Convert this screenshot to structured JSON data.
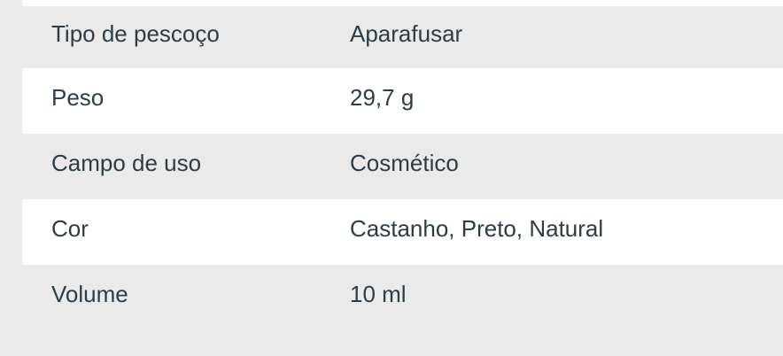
{
  "colors": {
    "background": "#eaeaea",
    "row_alt": "#ffffff",
    "text": "#2e3d45"
  },
  "spec_table": {
    "rows": [
      {
        "label": "Tipo de pescoço",
        "value": "Aparafusar"
      },
      {
        "label": "Peso",
        "value": "29,7 g"
      },
      {
        "label": "Campo de uso",
        "value": "Cosmético"
      },
      {
        "label": "Cor",
        "value": "Castanho, Preto, Natural"
      },
      {
        "label": "Volume",
        "value": "10 ml"
      }
    ]
  }
}
